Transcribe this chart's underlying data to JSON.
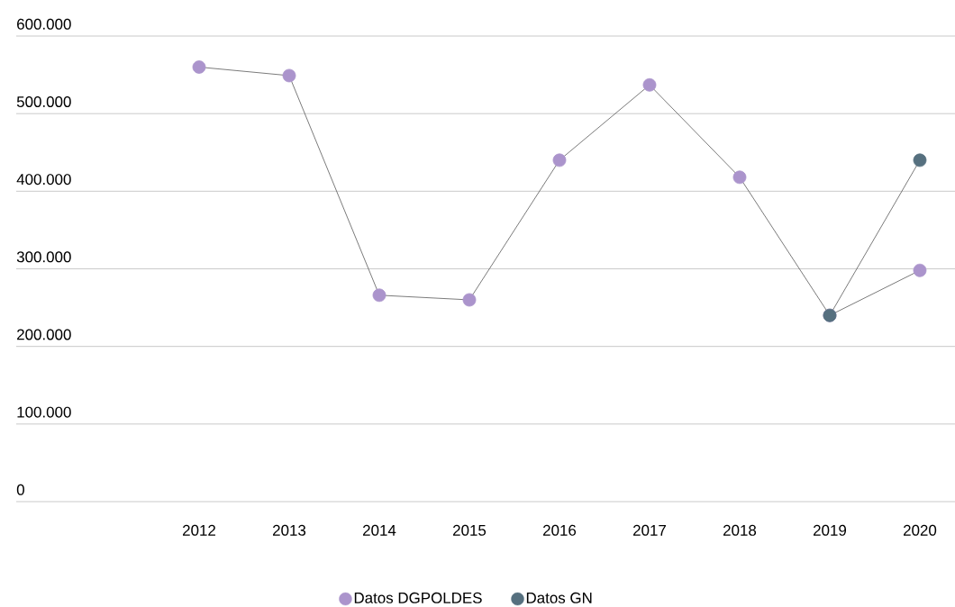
{
  "chart_data": {
    "type": "line",
    "categories": [
      "2012",
      "2013",
      "2014",
      "2015",
      "2016",
      "2017",
      "2018",
      "2019",
      "2020"
    ],
    "series": [
      {
        "name": "Datos DGPOLDES",
        "color": "#ab94cc",
        "values": [
          560000,
          549000,
          266000,
          260000,
          440000,
          537000,
          418000,
          240000,
          298000
        ]
      },
      {
        "name": "Datos GN",
        "color": "#56707f",
        "values": [
          null,
          null,
          null,
          null,
          null,
          null,
          null,
          240000,
          440000
        ]
      }
    ],
    "ylim": [
      0,
      600000
    ],
    "yticks": [
      {
        "value": 0,
        "label": "0"
      },
      {
        "value": 100000,
        "label": "100.000"
      },
      {
        "value": 200000,
        "label": "200.000"
      },
      {
        "value": 300000,
        "label": "300.000"
      },
      {
        "value": 400000,
        "label": "400.000"
      },
      {
        "value": 500000,
        "label": "500.000"
      },
      {
        "value": 600000,
        "label": "600.000"
      }
    ],
    "grid": "y",
    "legend": "bottom",
    "marker": "circle",
    "line_style": "solid"
  }
}
